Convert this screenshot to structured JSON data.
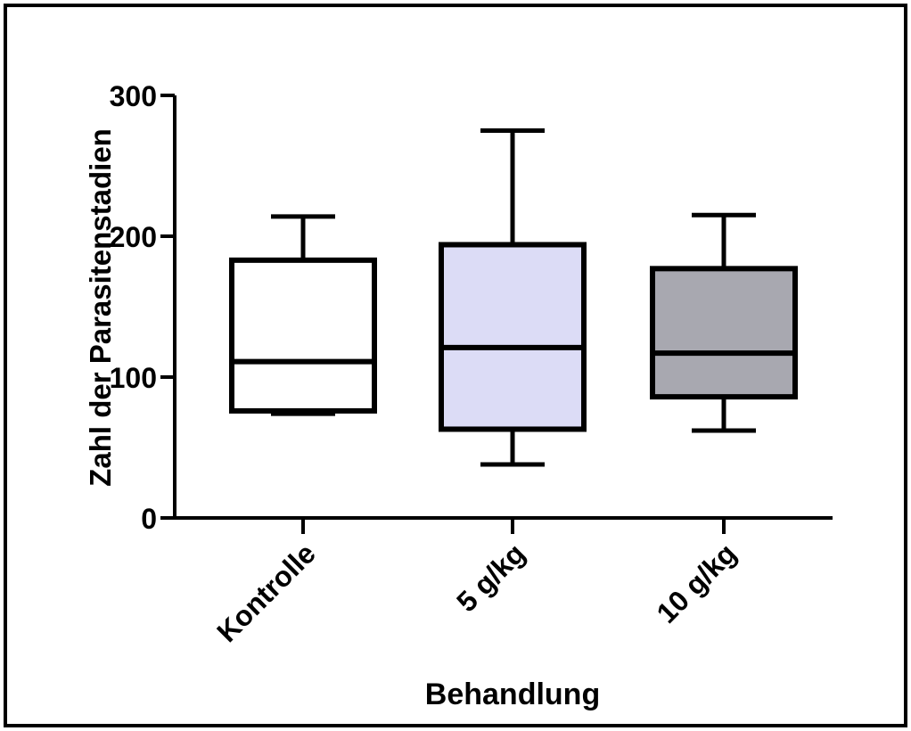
{
  "chart_data": {
    "type": "boxplot",
    "title": "",
    "xlabel": "Behandlung",
    "ylabel": "Zahl der Parasitenstadien",
    "ylim": [
      0,
      300
    ],
    "yticks": [
      0,
      100,
      200,
      300
    ],
    "categories": [
      "Kontrolle",
      "5 g/kg",
      "10 g/kg"
    ],
    "boxes": [
      {
        "category": "Kontrolle",
        "min": 74,
        "q1": 76,
        "median": 111,
        "q3": 183,
        "max": 214,
        "fill": "#ffffff"
      },
      {
        "category": "5 g/kg",
        "min": 38,
        "q1": 63,
        "median": 121,
        "q3": 194,
        "max": 275,
        "fill": "#dcdcf6"
      },
      {
        "category": "10 g/kg",
        "min": 62,
        "q1": 86,
        "median": 117,
        "q3": 177,
        "max": 215,
        "fill": "#a8a8b0"
      }
    ],
    "grid": false,
    "legend": "none"
  }
}
